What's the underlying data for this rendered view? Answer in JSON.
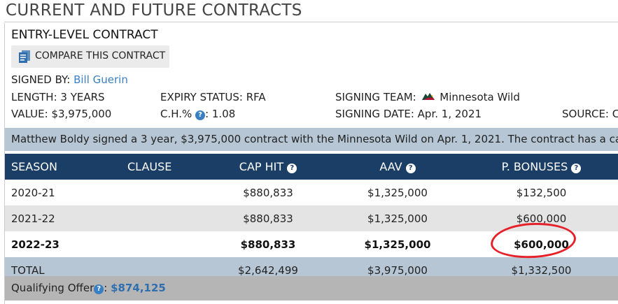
{
  "page_title": "CURRENT AND FUTURE CONTRACTS",
  "contract_type": "ENTRY-LEVEL CONTRACT",
  "compare_button": {
    "label": "COMPARE THIS CONTRACT",
    "icon": "document-compare-icon"
  },
  "signed_by": {
    "label": "SIGNED BY:",
    "value": "Bill Guerin"
  },
  "length": "LENGTH: 3 YEARS",
  "expiry_status": "EXPIRY STATUS: RFA",
  "signing_team": {
    "label": "SIGNING TEAM:",
    "value": "Minnesota Wild",
    "icon": "minnesota-wild-logo-icon"
  },
  "value": "VALUE: $3,975,000",
  "ch_pct": {
    "label": "C.H.%",
    "value": ": 1.08"
  },
  "signing_date": "SIGNING DATE: Apr. 1, 2021",
  "source": "SOURCE: C",
  "summary": "Matthew Boldy signed a 3 year, $3,975,000 contract with the Minnesota Wild on Apr. 1, 2021. The contract has a cap",
  "table": {
    "headers": [
      "SEASON",
      "CLAUSE",
      "CAP HIT",
      "AAV",
      "P. BONUSES"
    ],
    "rows": [
      {
        "season": "2020-21",
        "clause": "",
        "cap_hit": "$880,833",
        "aav": "$1,325,000",
        "p_bonuses": "$132,500"
      },
      {
        "season": "2021-22",
        "clause": "",
        "cap_hit": "$880,833",
        "aav": "$1,325,000",
        "p_bonuses": "$600,000"
      },
      {
        "season": "2022-23",
        "clause": "",
        "cap_hit": "$880,833",
        "aav": "$1,325,000",
        "p_bonuses": "$600,000"
      }
    ],
    "total": {
      "season": "TOTAL",
      "clause": "",
      "cap_hit": "$2,642,499",
      "aav": "$3,975,000",
      "p_bonuses": "$1,332,500"
    }
  },
  "qualifying_offer": {
    "label": "Qualifying Offer",
    "value": "$874,125"
  },
  "colors": {
    "header_bg": "#1b3e66",
    "summary_bg": "#b6c6d4",
    "link": "#3a7fc1",
    "annotation": "#e5222a"
  }
}
